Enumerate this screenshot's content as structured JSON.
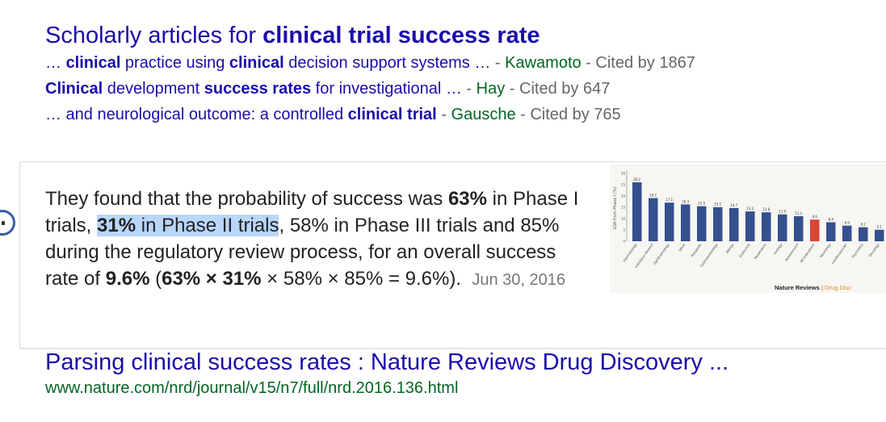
{
  "scholar": {
    "title_prefix": "Scholarly articles for ",
    "title_query": "clinical trial success rate",
    "articles": [
      {
        "parts": [
          {
            "t": "… ",
            "b": false
          },
          {
            "t": "clinical",
            "b": true
          },
          {
            "t": " practice using ",
            "b": false
          },
          {
            "t": "clinical",
            "b": true
          },
          {
            "t": " decision support systems …",
            "b": false
          }
        ],
        "author": "Kawamoto",
        "cited": "Cited by 1867"
      },
      {
        "parts": [
          {
            "t": "Clinical",
            "b": true
          },
          {
            "t": " development ",
            "b": false
          },
          {
            "t": "success rates",
            "b": true
          },
          {
            "t": " for investigational …",
            "b": false
          }
        ],
        "author": "Hay",
        "cited": "Cited by 647"
      },
      {
        "parts": [
          {
            "t": "… and neurological outcome: a controlled ",
            "b": false
          },
          {
            "t": "clinical trial",
            "b": true
          }
        ],
        "author": "Gausche",
        "cited": "Cited by 765"
      }
    ],
    "separator": " - "
  },
  "snippet": {
    "t1": "They found that the probability of success was ",
    "b1": "63%",
    "t2": " in Phase I trials, ",
    "hl_bold": "31%",
    "hl_rest": " in Phase II trials",
    "t3": ", 58% in Phase III trials and 85% during the regulatory review process, for an overall success rate of ",
    "b2": "9.6%",
    "t4": " (",
    "b3": "63% × 31%",
    "t5": " × 58% × 85% = 9.6%).",
    "date": "Jun 30, 2016"
  },
  "thumbnail": {
    "ylabel": "LOA from Phase I (%)",
    "credit_main": "Nature Reviews",
    "credit_sep": " | ",
    "credit_sub": "Drug Disc",
    "bar_color": "#35508f",
    "highlight_color": "#d9453b"
  },
  "chart_data": {
    "type": "bar",
    "title": "",
    "ylabel": "LOA from Phase I (%)",
    "ylim": [
      0,
      30
    ],
    "categories": [
      "Haematology",
      "Infectious disease",
      "Ophthalmology",
      "Other",
      "Metabolic",
      "Gastroenterology",
      "Allergy",
      "Endocrine",
      "Respiratory",
      "Urology",
      "Autoimmune",
      "All indications",
      "Neurology",
      "Cardiovascular",
      "Psychiatry",
      "Oncology"
    ],
    "values": [
      26.1,
      19.1,
      17.1,
      16.3,
      15.5,
      15.1,
      14.7,
      13.2,
      12.8,
      11.9,
      11.1,
      9.6,
      8.4,
      6.9,
      6.2,
      5.1
    ],
    "highlight_index": 11,
    "data_labels": [
      "26.1",
      "19.1",
      "17.1",
      "16.3",
      "15.5",
      "15.1",
      "14.7",
      "13.2",
      "12.8",
      "11.9",
      "11.1",
      "9.6",
      "8.4",
      "6.9",
      "6.2",
      "5.1"
    ]
  },
  "result": {
    "title": "Parsing clinical success rates : Nature Reviews Drug Discovery ...",
    "url": "www.nature.com/nrd/journal/v15/n7/full/nrd.2016.136.html"
  }
}
